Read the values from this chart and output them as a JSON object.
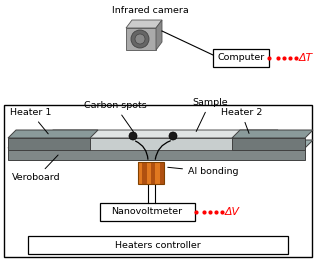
{
  "bg_color": "#ffffff",
  "camera_label": "Infrared camera",
  "computer_label": "Computer",
  "delta_T_label": "ΔT",
  "delta_V_label": "ΔV",
  "heater1_label": "Heater 1",
  "heater2_label": "Heater 2",
  "sample_label": "Sample",
  "carbon_label": "Carbon spots",
  "veroboard_label": "Veroboard",
  "albonding_label": "Al bonding",
  "nanovolt_label": "Nanovoltmeter",
  "heaters_ctrl_label": "Heaters controller",
  "orange_color": "#E07820",
  "orange_dark": "#B05010",
  "heater_gray": "#707878",
  "veroboard_gray": "#808888",
  "sample_gray": "#c8cece",
  "sample_light": "#e0e4e4",
  "wire_color": "#303030",
  "frame_color": "#000000"
}
